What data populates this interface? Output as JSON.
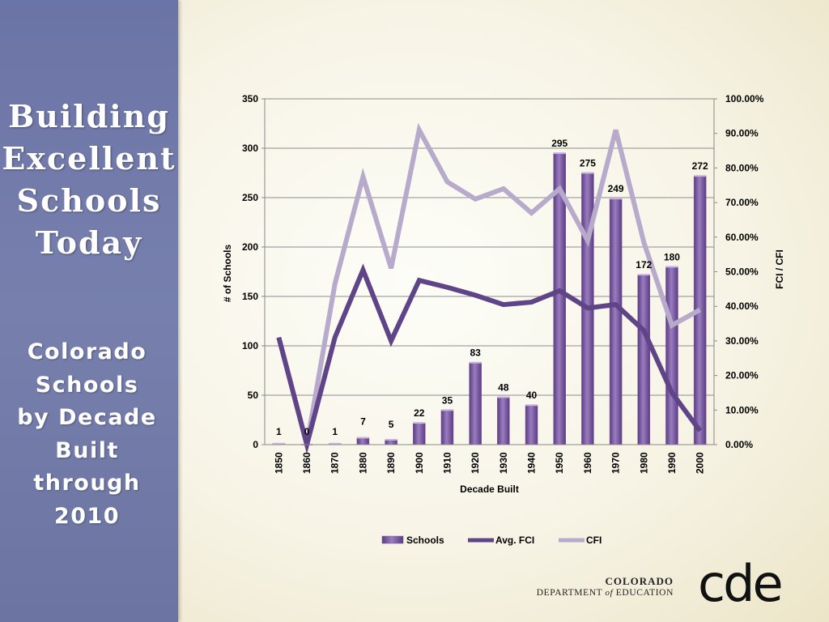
{
  "sidebar": {
    "title_lines": [
      "Building",
      "Excellent",
      "Schools",
      "Today"
    ],
    "subtitle_lines": [
      "Colorado",
      "Schools",
      "by Decade",
      "Built",
      "through",
      "2010"
    ]
  },
  "colors": {
    "sidebar_bg": "#7079a8",
    "bar_fill": "#7b569e",
    "avg_fci_line": "#5f4588",
    "cfi_line": "#b7aacb"
  },
  "logo": {
    "line1": "COLORADO",
    "line2_pre": "DEPARTMENT ",
    "line2_of": "of",
    "line2_post": " EDUCATION",
    "mark": "cde"
  },
  "chart_data": {
    "type": "bar",
    "categories": [
      "1850",
      "1860",
      "1870",
      "1880",
      "1890",
      "1900",
      "1910",
      "1920",
      "1930",
      "1940",
      "1950",
      "1960",
      "1970",
      "1980",
      "1990",
      "2000"
    ],
    "series": [
      {
        "name": "Schools",
        "type": "bar",
        "axis": "left",
        "values": [
          1,
          0,
          1,
          7,
          5,
          22,
          35,
          83,
          48,
          40,
          295,
          275,
          249,
          172,
          180,
          272
        ]
      },
      {
        "name": "Avg. FCI",
        "type": "line",
        "axis": "right",
        "values": [
          0.31,
          0.0,
          0.31,
          0.505,
          0.3,
          0.475,
          0.455,
          0.432,
          0.405,
          0.412,
          0.445,
          0.395,
          0.405,
          0.33,
          0.15,
          0.04
        ]
      },
      {
        "name": "CFI",
        "type": "line",
        "axis": "right",
        "values": [
          0.31,
          0.0,
          0.465,
          0.775,
          0.51,
          0.91,
          0.76,
          0.71,
          0.74,
          0.67,
          0.74,
          0.59,
          0.91,
          0.585,
          0.345,
          0.39
        ]
      }
    ],
    "data_labels": [
      "1",
      "0",
      "1",
      "7",
      "5",
      "22",
      "35",
      "83",
      "48",
      "40",
      "295",
      "275",
      "249",
      "172",
      "180",
      "272"
    ],
    "xlabel": "Decade Built",
    "ylabel": "# of Schools",
    "y2label": "FCI / CFI",
    "ylim": [
      0,
      350
    ],
    "y2lim": [
      0,
      1
    ],
    "yticks": [
      "0",
      "50",
      "100",
      "150",
      "200",
      "250",
      "300",
      "350"
    ],
    "y2ticks": [
      "0.00%",
      "10.00%",
      "20.00%",
      "30.00%",
      "40.00%",
      "50.00%",
      "60.00%",
      "70.00%",
      "80.00%",
      "90.00%",
      "100.00%"
    ],
    "grid": true,
    "legend_position": "bottom"
  }
}
